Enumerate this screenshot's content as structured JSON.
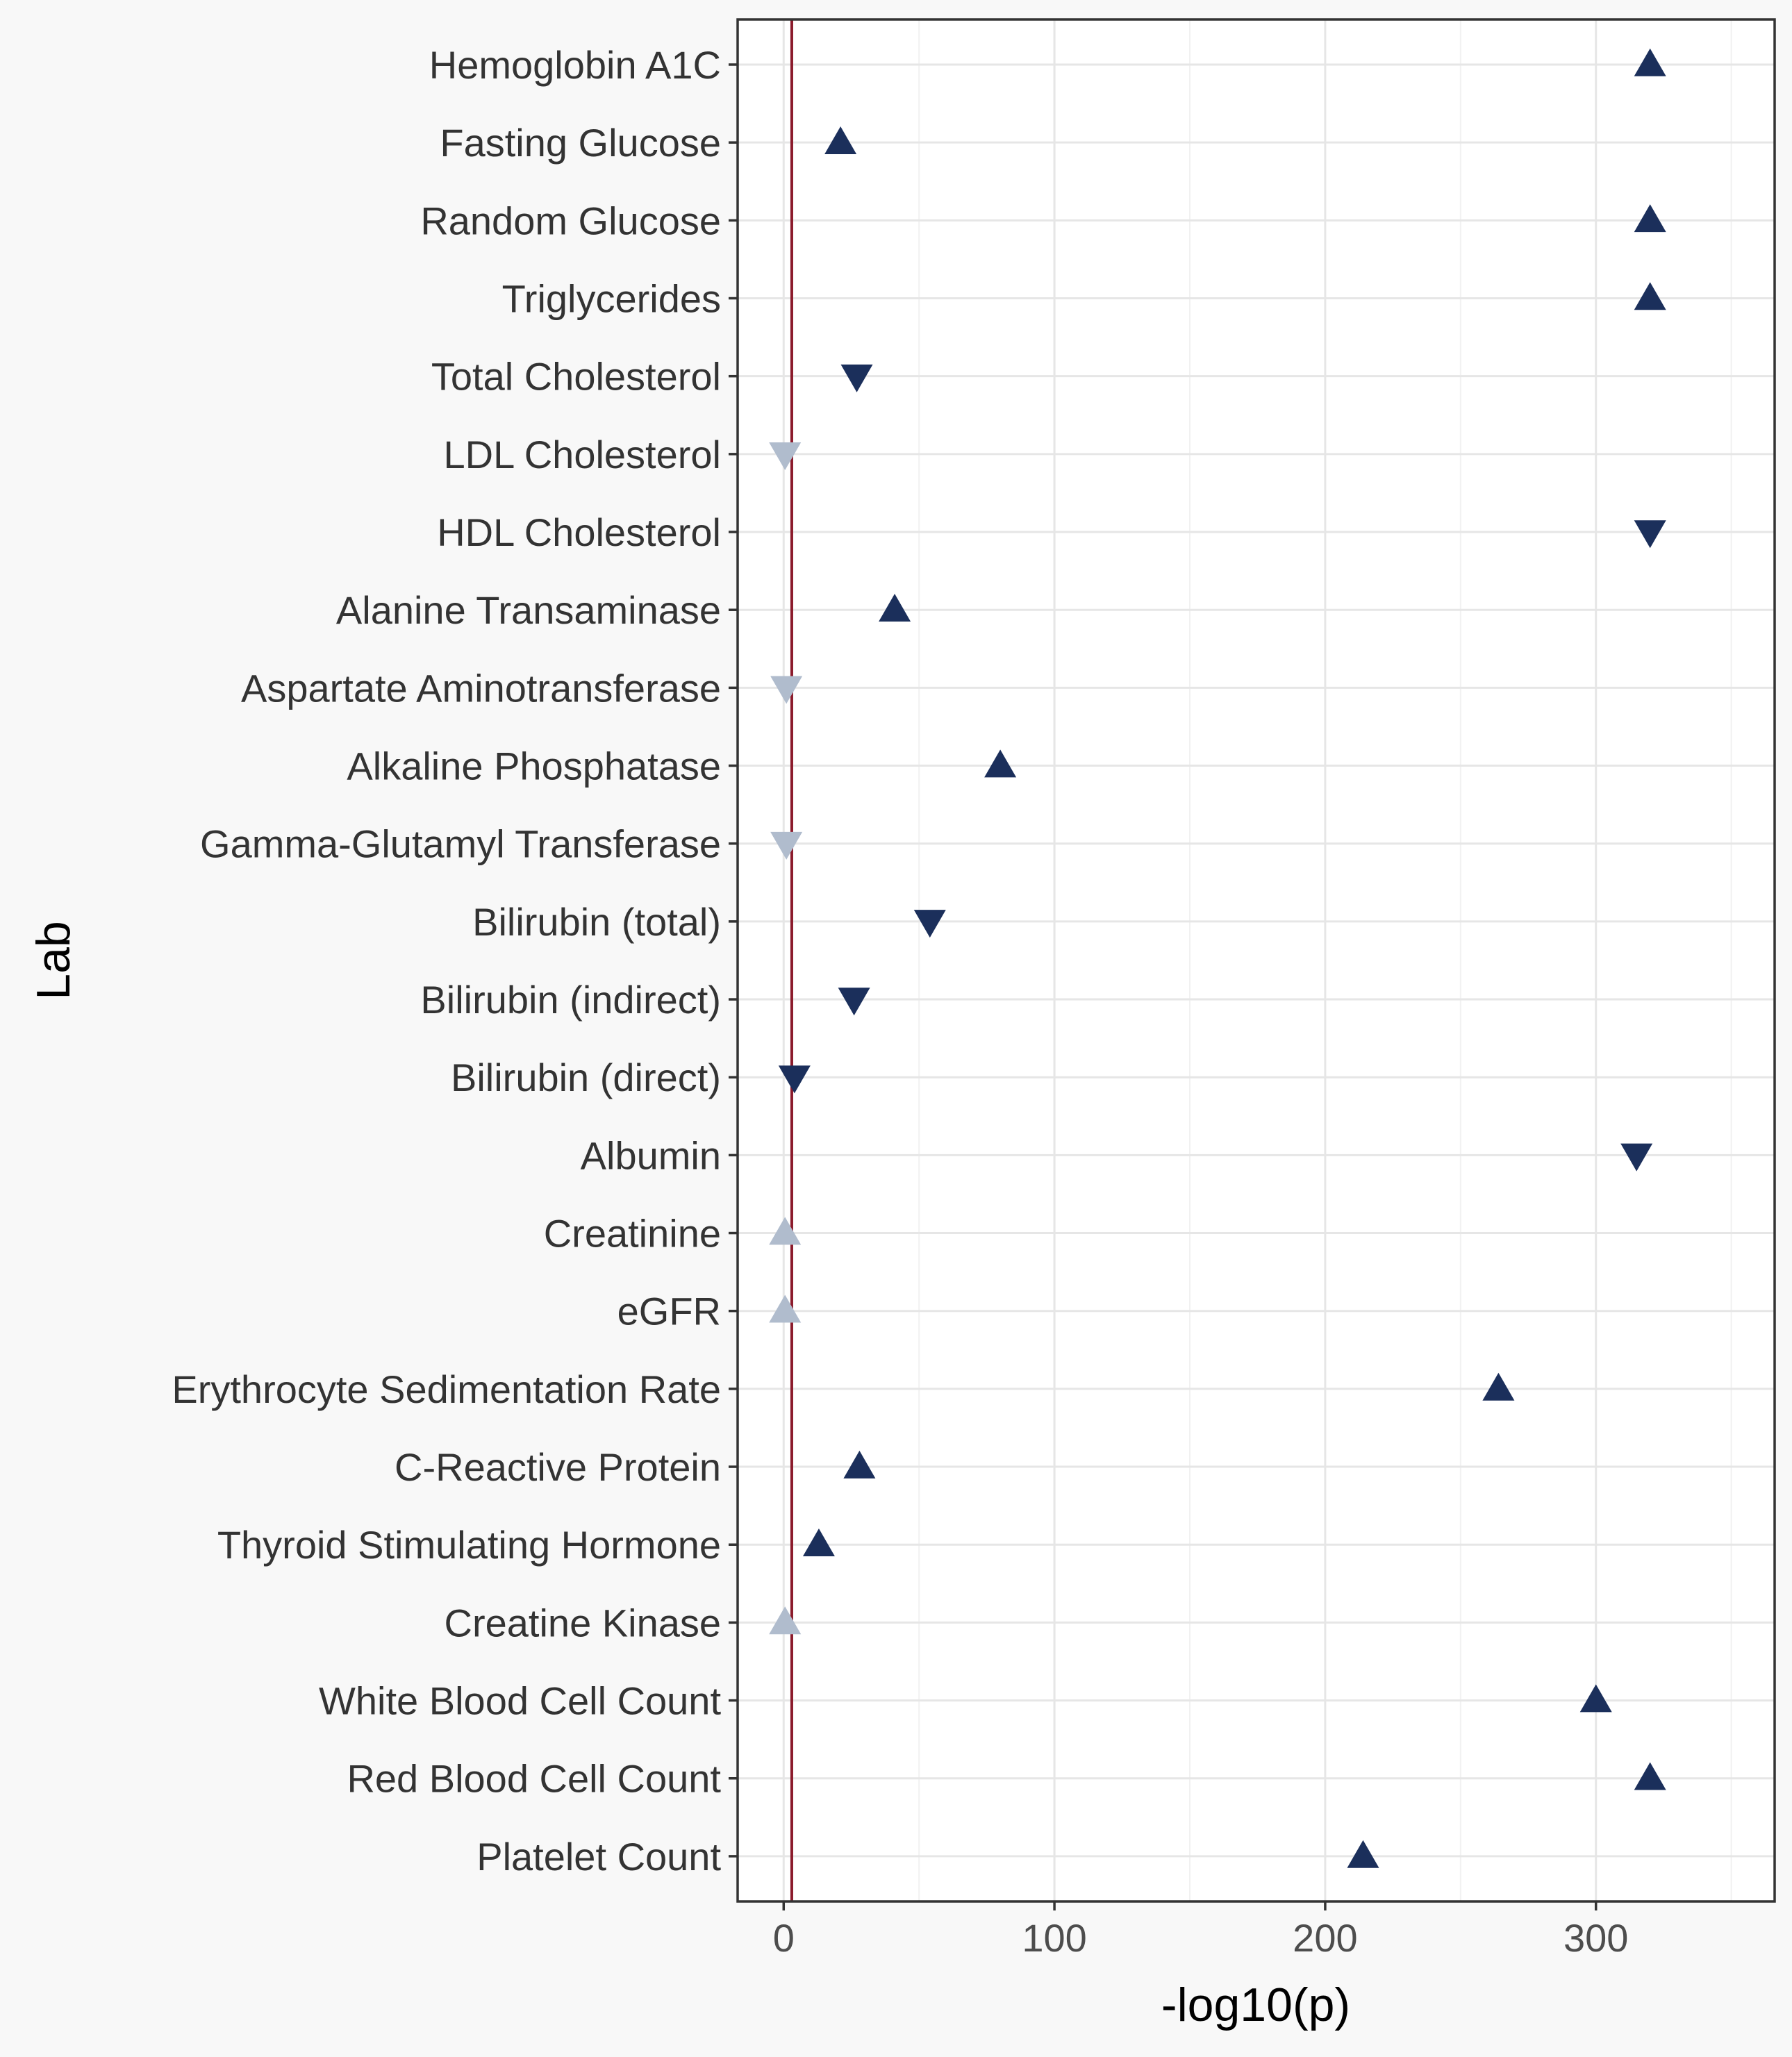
{
  "chart_data": {
    "type": "scatter",
    "title": "",
    "xlabel": "-log10(p)",
    "ylabel": "Lab",
    "xlim": [
      -17,
      366
    ],
    "x_ticks": [
      0,
      100,
      200,
      300
    ],
    "x_tick_labels": [
      "0",
      "100",
      "200",
      "300"
    ],
    "grid": true,
    "reference_line": {
      "x": 3,
      "color": "#8b1a2b"
    },
    "colors": {
      "significant": "#1b2f5b",
      "not_significant": "#b0bccd",
      "background": "#f8f8f8",
      "panel": "#ffffff",
      "grid_major": "#e6e6e6",
      "grid_minor": "#f1f1f1"
    },
    "categories": [
      "Hemoglobin A1C",
      "Fasting Glucose",
      "Random Glucose",
      "Triglycerides",
      "Total Cholesterol",
      "LDL Cholesterol",
      "HDL Cholesterol",
      "Alanine Transaminase",
      "Aspartate Aminotransferase",
      "Alkaline Phosphatase",
      "Gamma-Glutamyl Transferase",
      "Bilirubin (total)",
      "Bilirubin (indirect)",
      "Bilirubin (direct)",
      "Albumin",
      "Creatinine",
      "eGFR",
      "Erythrocyte Sedimentation Rate",
      "C-Reactive Protein",
      "Thyroid Stimulating Hormone",
      "Creatine Kinase",
      "White Blood Cell Count",
      "Red Blood Cell Count",
      "Platelet Count"
    ],
    "points": [
      {
        "lab": "Hemoglobin A1C",
        "x": 320,
        "direction": "up",
        "significant": true
      },
      {
        "lab": "Fasting Glucose",
        "x": 21,
        "direction": "up",
        "significant": true
      },
      {
        "lab": "Random Glucose",
        "x": 320,
        "direction": "up",
        "significant": true
      },
      {
        "lab": "Triglycerides",
        "x": 320,
        "direction": "up",
        "significant": true
      },
      {
        "lab": "Total Cholesterol",
        "x": 27,
        "direction": "down",
        "significant": true
      },
      {
        "lab": "LDL Cholesterol",
        "x": 0.5,
        "direction": "down",
        "significant": false
      },
      {
        "lab": "HDL Cholesterol",
        "x": 320,
        "direction": "down",
        "significant": true
      },
      {
        "lab": "Alanine Transaminase",
        "x": 41,
        "direction": "up",
        "significant": true
      },
      {
        "lab": "Aspartate Aminotransferase",
        "x": 1,
        "direction": "down",
        "significant": false
      },
      {
        "lab": "Alkaline Phosphatase",
        "x": 80,
        "direction": "up",
        "significant": true
      },
      {
        "lab": "Gamma-Glutamyl Transferase",
        "x": 1,
        "direction": "down",
        "significant": false
      },
      {
        "lab": "Bilirubin (total)",
        "x": 54,
        "direction": "down",
        "significant": true
      },
      {
        "lab": "Bilirubin (indirect)",
        "x": 26,
        "direction": "down",
        "significant": true
      },
      {
        "lab": "Bilirubin (direct)",
        "x": 4,
        "direction": "down",
        "significant": true
      },
      {
        "lab": "Albumin",
        "x": 315,
        "direction": "down",
        "significant": true
      },
      {
        "lab": "Creatinine",
        "x": 0.5,
        "direction": "up",
        "significant": false
      },
      {
        "lab": "eGFR",
        "x": 0.5,
        "direction": "up",
        "significant": false
      },
      {
        "lab": "Erythrocyte Sedimentation Rate",
        "x": 264,
        "direction": "up",
        "significant": true
      },
      {
        "lab": "C-Reactive Protein",
        "x": 28,
        "direction": "up",
        "significant": true
      },
      {
        "lab": "Thyroid Stimulating Hormone",
        "x": 13,
        "direction": "up",
        "significant": true
      },
      {
        "lab": "Creatine Kinase",
        "x": 0.5,
        "direction": "up",
        "significant": false
      },
      {
        "lab": "White Blood Cell Count",
        "x": 300,
        "direction": "up",
        "significant": true
      },
      {
        "lab": "Red Blood Cell Count",
        "x": 320,
        "direction": "up",
        "significant": true
      },
      {
        "lab": "Platelet Count",
        "x": 214,
        "direction": "up",
        "significant": true
      }
    ]
  }
}
